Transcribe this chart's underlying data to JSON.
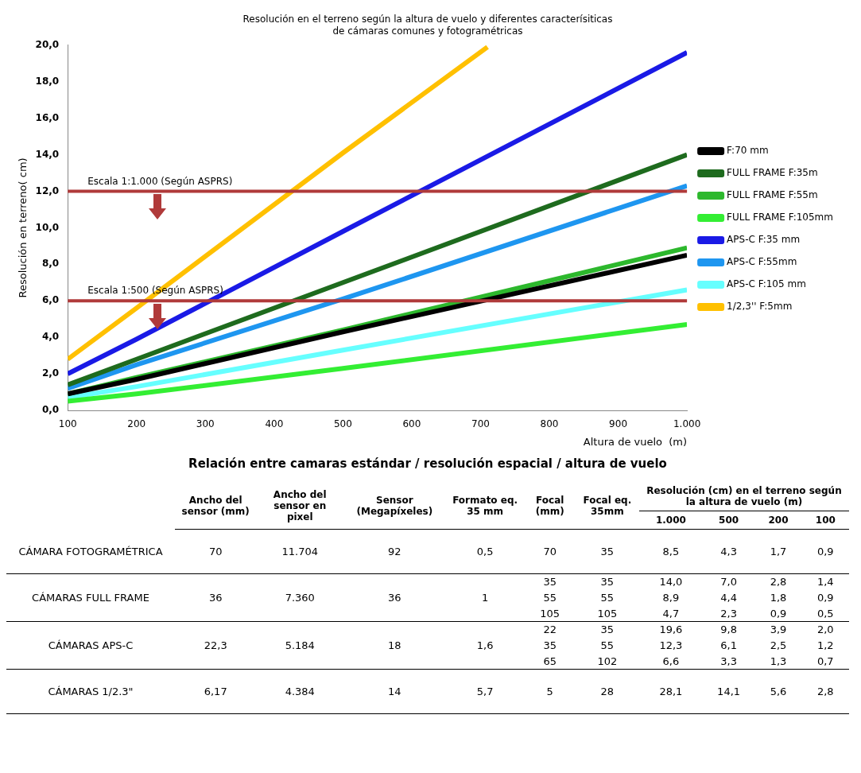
{
  "chart_data": [
    {
      "type": "line",
      "title": "Resolución en el terreno según la altura de vuelo y diferentes caracterísiticas\nde cámaras comunes y fotogramétricas",
      "xlabel": "Altura de vuelo  (m)",
      "ylabel": "Resolución en terreno( cm)",
      "legend": "right",
      "xlim": [
        100,
        1000
      ],
      "xticks": [
        100,
        200,
        300,
        400,
        500,
        600,
        700,
        800,
        900,
        {
          "value": 1000,
          "label": "1.000"
        }
      ],
      "ylim": [
        0,
        20
      ],
      "yticks": [
        {
          "value": 0,
          "label": "0,0"
        },
        {
          "value": 2,
          "label": "2,0"
        },
        {
          "value": 4,
          "label": "4,0"
        },
        {
          "value": 6,
          "label": "6,0"
        },
        {
          "value": 8,
          "label": "8,0"
        },
        {
          "value": 10,
          "label": "10,0"
        },
        {
          "value": 12,
          "label": "12,0"
        },
        {
          "value": 14,
          "label": "14,0"
        },
        {
          "value": 16,
          "label": "16,0"
        },
        {
          "value": 18,
          "label": "18,0"
        },
        {
          "value": 20,
          "label": "20,0"
        }
      ],
      "series": [
        {
          "name": "F:70 mm",
          "color": "#000000",
          "x": [
            100,
            200,
            500,
            1000
          ],
          "values": [
            0.9,
            1.7,
            4.3,
            8.5
          ]
        },
        {
          "name": "FULL FRAME F:35m",
          "color": "#1e6b1e",
          "x": [
            100,
            200,
            500,
            1000
          ],
          "values": [
            1.4,
            2.8,
            7.0,
            14.0
          ]
        },
        {
          "name": "FULL FRAME F:55m",
          "color": "#2db82d",
          "x": [
            100,
            200,
            500,
            1000
          ],
          "values": [
            0.9,
            1.8,
            4.4,
            8.9
          ]
        },
        {
          "name": "FULL FRAME F:105mm",
          "color": "#33ee33",
          "x": [
            100,
            200,
            500,
            1000
          ],
          "values": [
            0.5,
            0.9,
            2.3,
            4.7
          ]
        },
        {
          "name": "APS-C F:35 mm",
          "color": "#1a1ae6",
          "x": [
            100,
            200,
            500,
            1000
          ],
          "values": [
            2.0,
            3.9,
            9.8,
            19.6
          ]
        },
        {
          "name": "APS-C F:55mm",
          "color": "#1e96f0",
          "x": [
            100,
            200,
            500,
            1000
          ],
          "values": [
            1.2,
            2.5,
            6.1,
            12.3
          ]
        },
        {
          "name": "APS-C F:105 mm",
          "color": "#66ffff",
          "x": [
            100,
            200,
            500,
            1000
          ],
          "values": [
            0.7,
            1.3,
            3.3,
            6.6
          ]
        },
        {
          "name": "1/2,3'' F:5mm",
          "color": "#ffc000",
          "x": [
            100,
            200,
            500,
            710
          ],
          "values": [
            2.8,
            5.6,
            14.1,
            19.9
          ]
        }
      ],
      "ref_lines": [
        {
          "axis": "y",
          "value": 12,
          "color": "#b03a3a"
        },
        {
          "axis": "y",
          "value": 6,
          "color": "#b03a3a"
        }
      ],
      "annotations": [
        {
          "text": "Escala 1:1.000 (Según ASPRS)",
          "y": 12
        },
        {
          "text": "Escala 1:500 (Según ASPRS)",
          "y": 6
        }
      ]
    },
    {
      "type": "other",
      "title": "Relación entre camaras estándar / resolución espacial / altura de vuelo",
      "annotations": [
        "Resolución (cm) en el terreno según la altura de vuelo (m)"
      ],
      "categories": [
        "Ancho del sensor (mm)",
        "Ancho del sensor en pixel",
        "Sensor (Megapíxeles)",
        "Formato eq. 35 mm",
        "Focal (mm)",
        "Focal eq. 35mm",
        "1.000",
        "500",
        "200",
        "100"
      ],
      "y_categories": [
        "CÁMARA FOTOGRAMÉTRICA",
        "CÁMARAS FULL FRAME",
        null,
        null,
        "CÁMARAS APS-C",
        null,
        null,
        "CÁMARAS 1/2.3\""
      ],
      "cell_labels": [
        [
          "70",
          "11.704",
          "92",
          "0,5",
          "70",
          "35",
          "8,5",
          "4,3",
          "1,7",
          "0,9"
        ],
        [
          "36",
          "7.360",
          "36",
          "1",
          "35",
          "35",
          "14,0",
          "7,0",
          "2,8",
          "1,4"
        ],
        [
          null,
          null,
          null,
          null,
          "55",
          "55",
          "8,9",
          "4,4",
          "1,8",
          "0,9"
        ],
        [
          null,
          null,
          null,
          null,
          "105",
          "105",
          "4,7",
          "2,3",
          "0,9",
          "0,5"
        ],
        [
          "22,3",
          "5.184",
          "18",
          "1,6",
          "22",
          "35",
          "19,6",
          "9,8",
          "3,9",
          "2,0"
        ],
        [
          null,
          null,
          null,
          null,
          "35",
          "55",
          "12,3",
          "6,1",
          "2,5",
          "1,2"
        ],
        [
          null,
          null,
          null,
          null,
          "65",
          "102",
          "6,6",
          "3,3",
          "1,3",
          "0,7"
        ],
        [
          "6,17",
          "4.384",
          "14",
          "5,7",
          "5",
          "28",
          "28,1",
          "14,1",
          "5,6",
          "2,8"
        ]
      ]
    }
  ]
}
